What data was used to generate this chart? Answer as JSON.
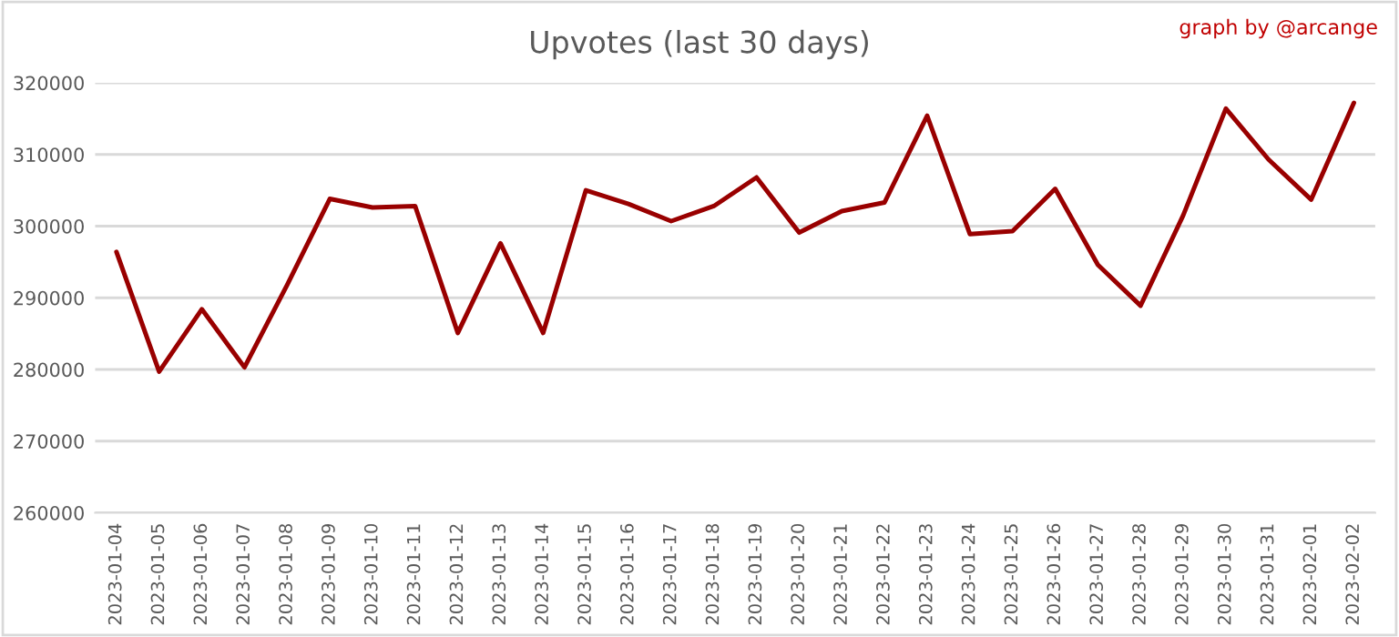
{
  "chart_data": {
    "type": "line",
    "title": "Upvotes (last 30 days)",
    "annotations": [
      "graph by @arcange"
    ],
    "categories": [
      "2023-01-04",
      "2023-01-05",
      "2023-01-06",
      "2023-01-07",
      "2023-01-08",
      "2023-01-09",
      "2023-01-10",
      "2023-01-11",
      "2023-01-12",
      "2023-01-13",
      "2023-01-14",
      "2023-01-15",
      "2023-01-16",
      "2023-01-17",
      "2023-01-18",
      "2023-01-19",
      "2023-01-20",
      "2023-01-21",
      "2023-01-22",
      "2023-01-23",
      "2023-01-24",
      "2023-01-25",
      "2023-01-26",
      "2023-01-27",
      "2023-01-28",
      "2023-01-29",
      "2023-01-30",
      "2023-01-31",
      "2023-02-01",
      "2023-02-02"
    ],
    "series": [
      {
        "color": "#990000",
        "values": [
          296400,
          279700,
          288400,
          280300,
          291800,
          303800,
          302600,
          302800,
          285100,
          297600,
          285100,
          305000,
          303100,
          300700,
          302800,
          306800,
          299100,
          302100,
          303300,
          315400,
          298900,
          299300,
          305200,
          294600,
          288900,
          301500,
          316400,
          309300,
          303700,
          317200
        ]
      }
    ],
    "ylim": [
      260000,
      320000
    ],
    "yticks": [
      260000,
      270000,
      280000,
      290000,
      300000,
      310000,
      320000
    ],
    "grid": "y",
    "legend": false,
    "marker": "none",
    "line_style": "solid"
  }
}
